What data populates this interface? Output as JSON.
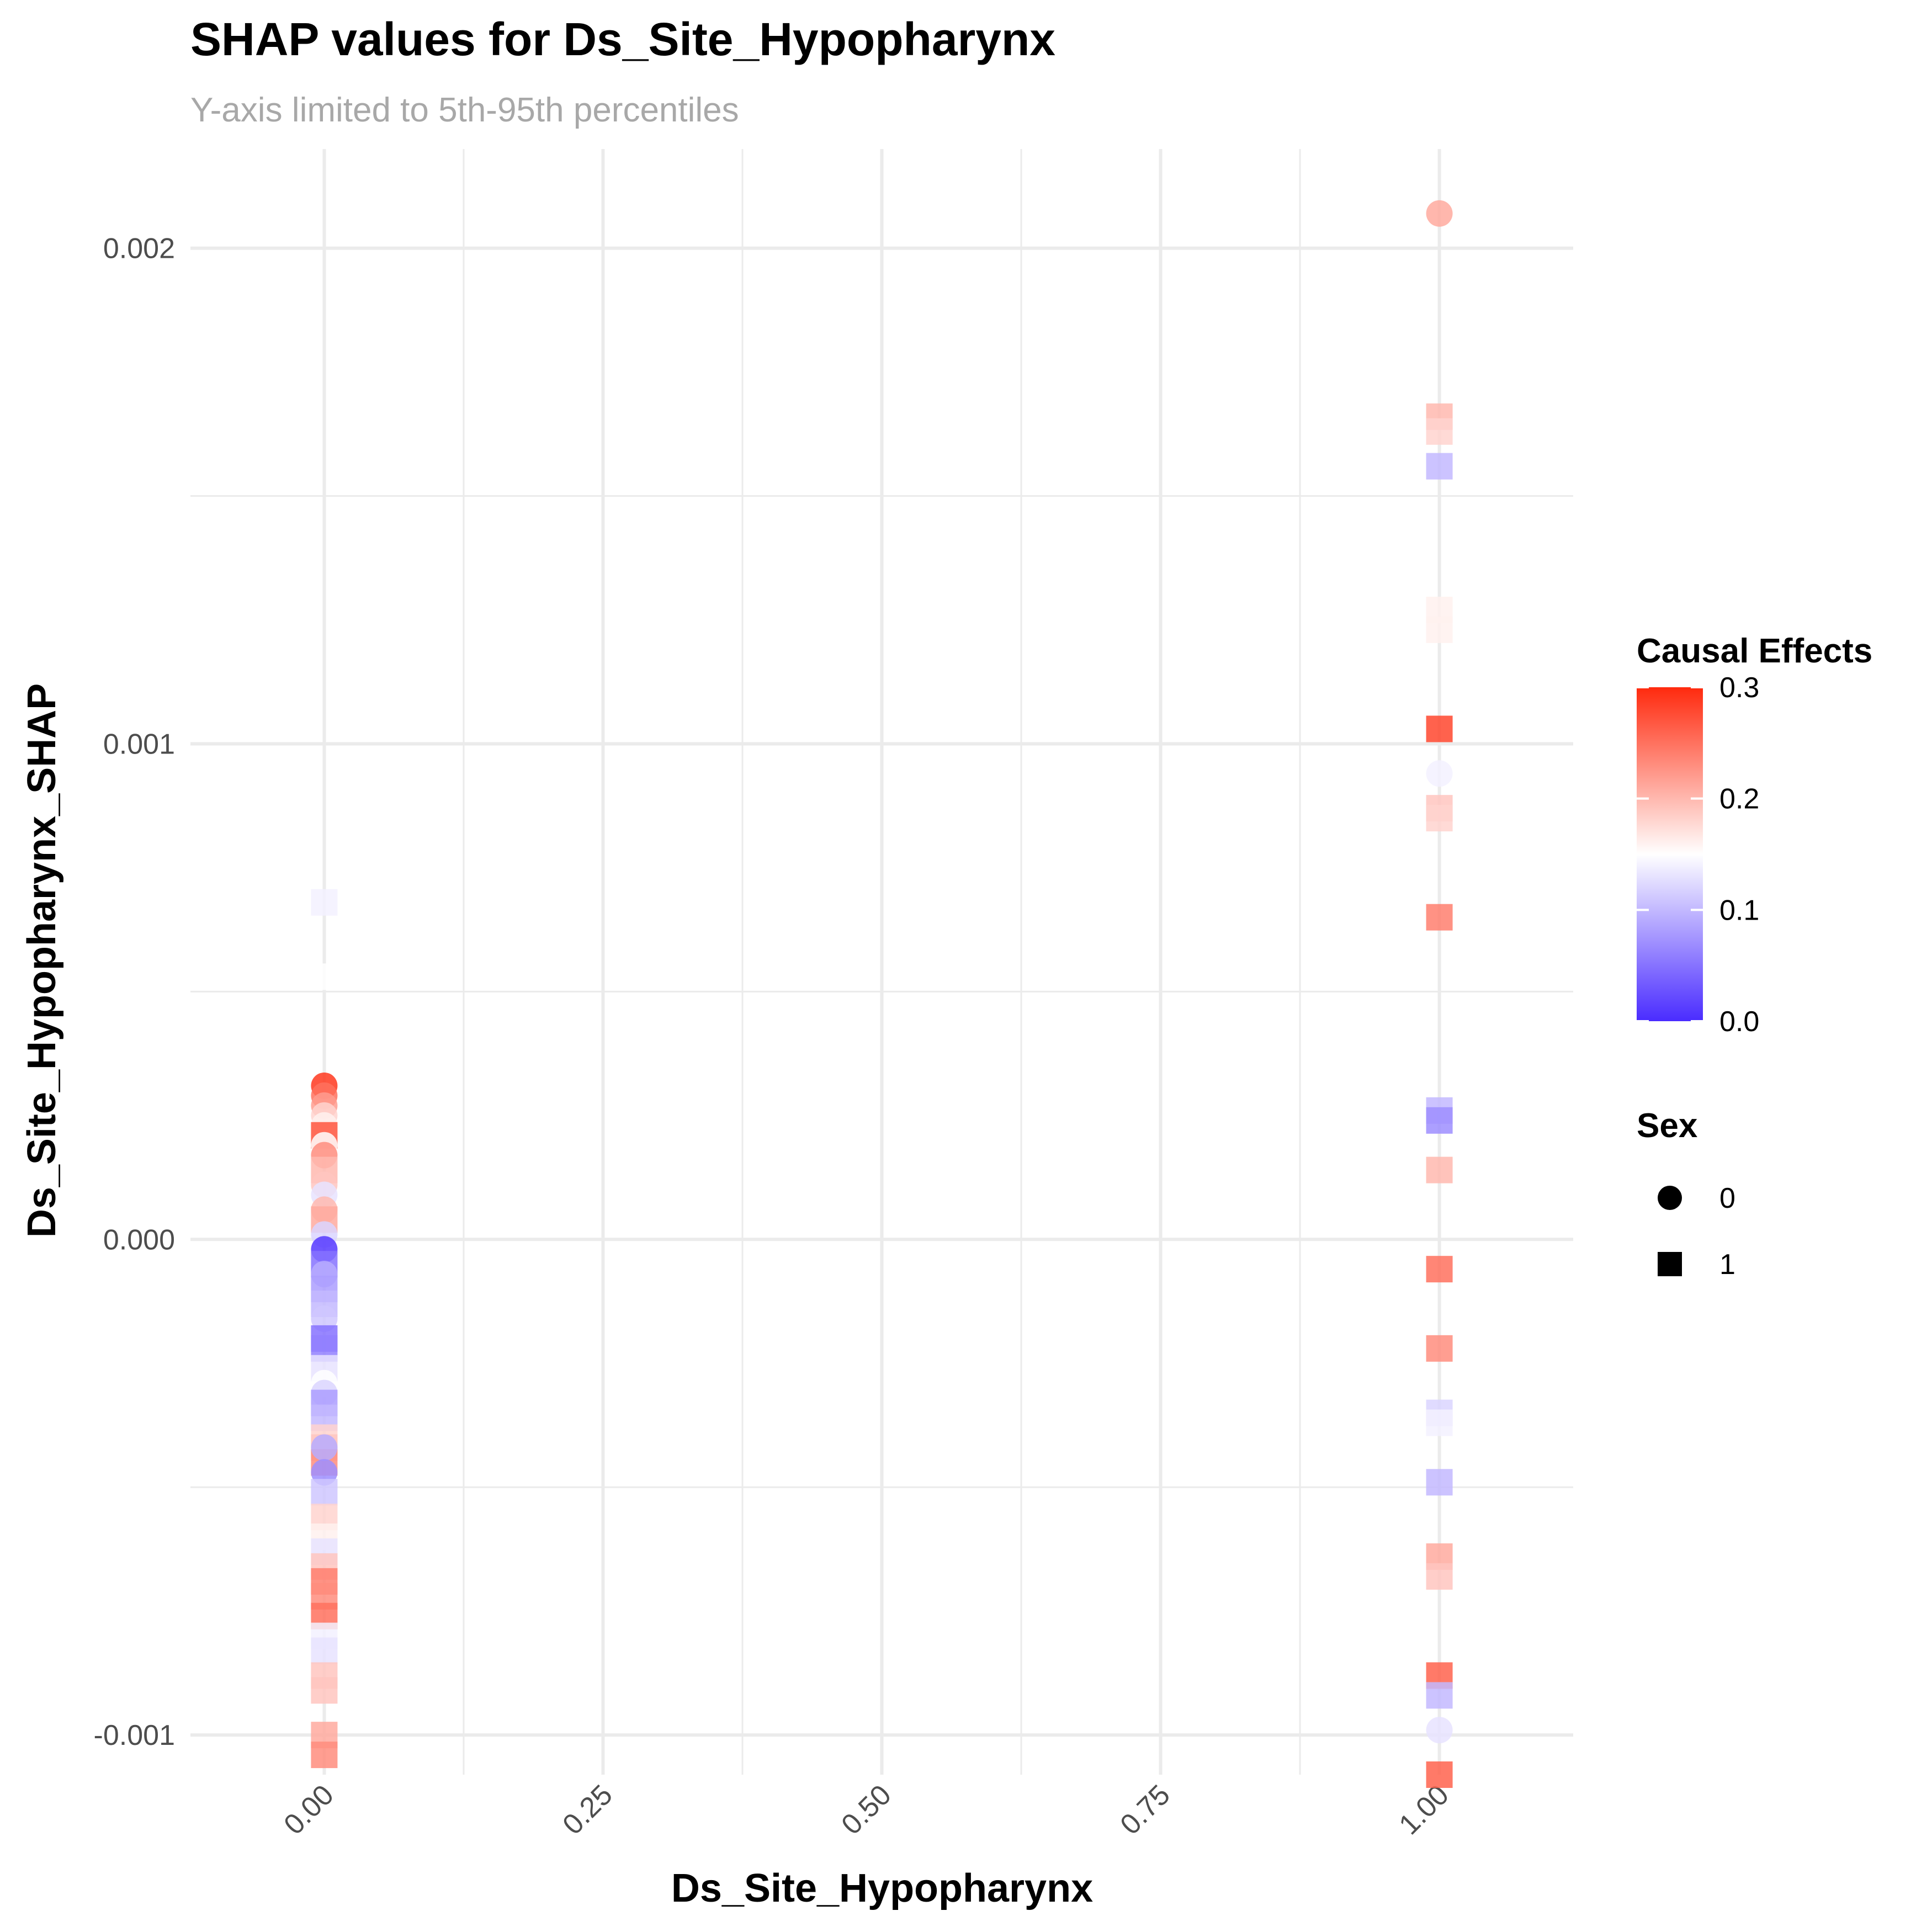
{
  "chart_data": {
    "type": "scatter",
    "title": "SHAP values for Ds_Site_Hypopharynx",
    "subtitle": "Y-axis limited to 5th-95th percentiles",
    "xlabel": "Ds_Site_Hypopharynx",
    "ylabel": "Ds_Site_Hypopharynx_SHAP",
    "xlim": [
      -0.12,
      1.12
    ],
    "ylim": [
      -0.00108,
      0.0022
    ],
    "x_ticks": [
      0.0,
      0.25,
      0.5,
      0.75,
      1.0
    ],
    "x_tick_labels": [
      "0.00",
      "0.25",
      "0.50",
      "0.75",
      "1.00"
    ],
    "y_ticks": [
      -0.001,
      0.0,
      0.001,
      0.002
    ],
    "y_tick_labels": [
      "-0.001",
      "0.000",
      "0.001",
      "0.002"
    ],
    "grid": true,
    "color_legend": {
      "title": "Causal Effects",
      "min": 0.0,
      "max": 0.3,
      "ticks": [
        0.0,
        0.1,
        0.2,
        0.3
      ],
      "tick_labels": [
        "0.0",
        "0.1",
        "0.2",
        "0.3"
      ],
      "low_color": "#4a2cff",
      "mid_color": "#ffffff",
      "high_color": "#ff2a0e",
      "midpoint": 0.15
    },
    "shape_legend": {
      "title": "Sex",
      "items": [
        {
          "label": "0",
          "shape": "circle"
        },
        {
          "label": "1",
          "shape": "square"
        }
      ]
    },
    "points": [
      {
        "x": 1,
        "y": 0.00207,
        "c": 0.21,
        "s": 0
      },
      {
        "x": 1,
        "y": 0.00166,
        "c": 0.2,
        "s": 1
      },
      {
        "x": 1,
        "y": 0.00163,
        "c": 0.18,
        "s": 1
      },
      {
        "x": 1,
        "y": 0.00156,
        "c": 0.1,
        "s": 1
      },
      {
        "x": 1,
        "y": 0.00127,
        "c": 0.16,
        "s": 1
      },
      {
        "x": 1,
        "y": 0.00123,
        "c": 0.16,
        "s": 1
      },
      {
        "x": 1,
        "y": 0.00103,
        "c": 0.28,
        "s": 1
      },
      {
        "x": 1,
        "y": 0.00094,
        "c": 0.14,
        "s": 0
      },
      {
        "x": 1,
        "y": 0.00087,
        "c": 0.19,
        "s": 1
      },
      {
        "x": 1,
        "y": 0.00085,
        "c": 0.18,
        "s": 1
      },
      {
        "x": 1,
        "y": 0.00065,
        "c": 0.24,
        "s": 1
      },
      {
        "x": 1,
        "y": 0.00026,
        "c": 0.1,
        "s": 1
      },
      {
        "x": 1,
        "y": 0.00024,
        "c": 0.07,
        "s": 1
      },
      {
        "x": 1,
        "y": 0.00014,
        "c": 0.2,
        "s": 1
      },
      {
        "x": 1,
        "y": -6e-05,
        "c": 0.25,
        "s": 1
      },
      {
        "x": 1,
        "y": -0.00022,
        "c": 0.23,
        "s": 1
      },
      {
        "x": 1,
        "y": -0.00035,
        "c": 0.12,
        "s": 1
      },
      {
        "x": 1,
        "y": -0.00037,
        "c": 0.14,
        "s": 1
      },
      {
        "x": 1,
        "y": -0.00049,
        "c": 0.1,
        "s": 1
      },
      {
        "x": 1,
        "y": -0.00064,
        "c": 0.21,
        "s": 1
      },
      {
        "x": 1,
        "y": -0.00068,
        "c": 0.19,
        "s": 1
      },
      {
        "x": 1,
        "y": -0.00088,
        "c": 0.26,
        "s": 1
      },
      {
        "x": 1,
        "y": -0.00092,
        "c": 0.1,
        "s": 1
      },
      {
        "x": 1,
        "y": -0.00099,
        "c": 0.13,
        "s": 0
      },
      {
        "x": 1,
        "y": -0.00108,
        "c": 0.26,
        "s": 1
      },
      {
        "x": 0,
        "y": 0.00068,
        "c": 0.14,
        "s": 1
      },
      {
        "x": 0,
        "y": 0.00053,
        "c": 0.15,
        "s": 1
      },
      {
        "x": 0,
        "y": 0.00031,
        "c": 0.29,
        "s": 0
      },
      {
        "x": 0,
        "y": 0.00029,
        "c": 0.25,
        "s": 0
      },
      {
        "x": 0,
        "y": 0.00027,
        "c": 0.22,
        "s": 0
      },
      {
        "x": 0,
        "y": 0.00025,
        "c": 0.18,
        "s": 0
      },
      {
        "x": 0,
        "y": 0.00023,
        "c": 0.16,
        "s": 0
      },
      {
        "x": 0,
        "y": 0.00021,
        "c": 0.27,
        "s": 1
      },
      {
        "x": 0,
        "y": 0.00019,
        "c": 0.15,
        "s": 0
      },
      {
        "x": 0,
        "y": 0.00017,
        "c": 0.23,
        "s": 0
      },
      {
        "x": 0,
        "y": 0.00014,
        "c": 0.2,
        "s": 1
      },
      {
        "x": 0,
        "y": 0.00011,
        "c": 0.19,
        "s": 0
      },
      {
        "x": 0,
        "y": 9e-05,
        "c": 0.13,
        "s": 0
      },
      {
        "x": 0,
        "y": 6e-05,
        "c": 0.2,
        "s": 0
      },
      {
        "x": 0,
        "y": 4e-05,
        "c": 0.21,
        "s": 1
      },
      {
        "x": 0,
        "y": 1e-05,
        "c": 0.12,
        "s": 0
      },
      {
        "x": 0,
        "y": -2e-05,
        "c": 0.01,
        "s": 0
      },
      {
        "x": 0,
        "y": -5e-05,
        "c": 0.05,
        "s": 1
      },
      {
        "x": 0,
        "y": -7e-05,
        "c": 0.09,
        "s": 0
      },
      {
        "x": 0,
        "y": -0.0001,
        "c": 0.08,
        "s": 1
      },
      {
        "x": 0,
        "y": -0.00013,
        "c": 0.1,
        "s": 1
      },
      {
        "x": 0,
        "y": -0.00016,
        "c": 0.11,
        "s": 0
      },
      {
        "x": 0,
        "y": -0.0002,
        "c": 0.05,
        "s": 1
      },
      {
        "x": 0,
        "y": -0.00022,
        "c": 0.06,
        "s": 1
      },
      {
        "x": 0,
        "y": -0.00026,
        "c": 0.13,
        "s": 1
      },
      {
        "x": 0,
        "y": -0.00029,
        "c": 0.15,
        "s": 0
      },
      {
        "x": 0,
        "y": -0.00031,
        "c": 0.12,
        "s": 0
      },
      {
        "x": 0,
        "y": -0.00033,
        "c": 0.08,
        "s": 1
      },
      {
        "x": 0,
        "y": -0.00036,
        "c": 0.1,
        "s": 1
      },
      {
        "x": 0,
        "y": -0.0004,
        "c": 0.18,
        "s": 1
      },
      {
        "x": 0,
        "y": -0.00042,
        "c": 0.19,
        "s": 1
      },
      {
        "x": 0,
        "y": -0.00045,
        "c": 0.23,
        "s": 1
      },
      {
        "x": 0,
        "y": -0.00042,
        "c": 0.09,
        "s": 0
      },
      {
        "x": 0,
        "y": -0.00047,
        "c": 0.07,
        "s": 0
      },
      {
        "x": 0,
        "y": -0.00051,
        "c": 0.11,
        "s": 1
      },
      {
        "x": 0,
        "y": -0.00056,
        "c": 0.18,
        "s": 1
      },
      {
        "x": 0,
        "y": -0.0006,
        "c": 0.16,
        "s": 1
      },
      {
        "x": 0,
        "y": -0.00063,
        "c": 0.13,
        "s": 1
      },
      {
        "x": 0,
        "y": -0.00066,
        "c": 0.19,
        "s": 1
      },
      {
        "x": 0,
        "y": -0.00069,
        "c": 0.24,
        "s": 1
      },
      {
        "x": 0,
        "y": -0.00072,
        "c": 0.23,
        "s": 1
      },
      {
        "x": 0,
        "y": -0.00076,
        "c": 0.25,
        "s": 1
      },
      {
        "x": 0,
        "y": -0.0008,
        "c": 0.14,
        "s": 1
      },
      {
        "x": 0,
        "y": -0.00083,
        "c": 0.13,
        "s": 1
      },
      {
        "x": 0,
        "y": -0.00088,
        "c": 0.19,
        "s": 1
      },
      {
        "x": 0,
        "y": -0.00091,
        "c": 0.19,
        "s": 1
      },
      {
        "x": 0,
        "y": -0.001,
        "c": 0.21,
        "s": 1
      },
      {
        "x": 0,
        "y": -0.00104,
        "c": 0.23,
        "s": 1
      }
    ]
  }
}
